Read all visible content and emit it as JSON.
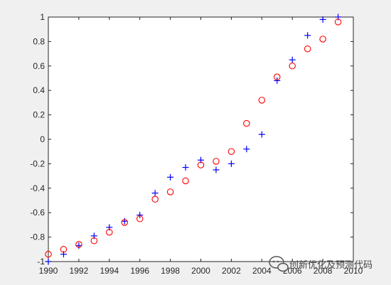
{
  "chart_data": {
    "type": "scatter",
    "title": "",
    "xlabel": "",
    "ylabel": "",
    "xlim": [
      1990,
      2010
    ],
    "ylim": [
      -1,
      1
    ],
    "grid": false,
    "x_ticks": [
      "1990",
      "1992",
      "1994",
      "1996",
      "1998",
      "2000",
      "2002",
      "2004",
      "2006",
      "2008",
      "2010"
    ],
    "y_ticks": [
      "-1",
      "-0.8",
      "-0.6",
      "-0.4",
      "-0.2",
      "0",
      "0.2",
      "0.4",
      "0.6",
      "0.8",
      "1"
    ],
    "x": [
      1990,
      1991,
      1992,
      1993,
      1994,
      1995,
      1996,
      1997,
      1998,
      1999,
      2000,
      2001,
      2002,
      2003,
      2004,
      2005,
      2006,
      2007,
      2008,
      2009
    ],
    "series": [
      {
        "marker": "plus",
        "color": "#0000ff",
        "values": [
          -1.0,
          -0.94,
          -0.87,
          -0.79,
          -0.72,
          -0.67,
          -0.62,
          -0.44,
          -0.31,
          -0.23,
          -0.17,
          -0.25,
          -0.2,
          -0.08,
          0.04,
          0.48,
          0.65,
          0.85,
          0.98,
          1.0
        ]
      },
      {
        "marker": "circle",
        "color": "#ff0000",
        "values": [
          -0.94,
          -0.9,
          -0.86,
          -0.83,
          -0.76,
          -0.68,
          -0.65,
          -0.49,
          -0.43,
          -0.34,
          -0.21,
          -0.18,
          -0.1,
          0.13,
          0.32,
          0.51,
          0.6,
          0.74,
          0.82,
          0.96
        ]
      }
    ]
  },
  "watermark": {
    "text": "创新优化及预测代码",
    "icon": "chat-bubble-icon"
  }
}
